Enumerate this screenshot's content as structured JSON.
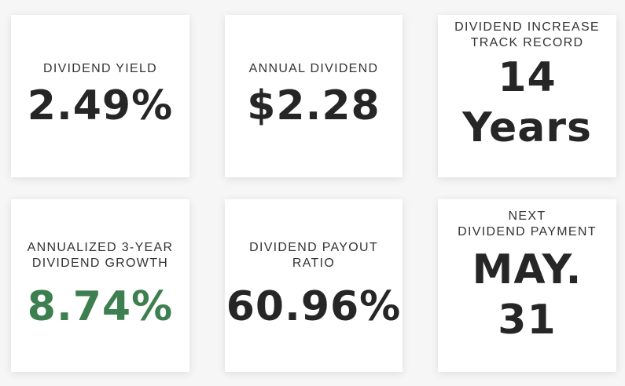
{
  "cards": [
    {
      "label_lines": [
        "DIVIDEND YIELD"
      ],
      "value_lines": [
        "2.49%"
      ]
    },
    {
      "label_lines": [
        "ANNUAL DIVIDEND"
      ],
      "value_lines": [
        "$2.28"
      ]
    },
    {
      "label_lines": [
        "DIVIDEND INCREASE",
        "TRACK RECORD"
      ],
      "value_lines": [
        "14",
        "Years"
      ]
    },
    {
      "label_lines": [
        "ANNUALIZED 3-YEAR",
        "DIVIDEND GROWTH"
      ],
      "value_lines": [
        "8.74%"
      ]
    },
    {
      "label_lines": [
        "DIVIDEND PAYOUT",
        "RATIO"
      ],
      "value_lines": [
        "60.96%"
      ]
    },
    {
      "label_lines": [
        "NEXT",
        "DIVIDEND PAYMENT"
      ],
      "value_lines": [
        "MAY.",
        "31"
      ]
    }
  ],
  "colors": {
    "text": "#262626",
    "growth_green": "#3e7f4f",
    "card_bg": "#ffffff",
    "page_bg": "#f6f6f6"
  }
}
